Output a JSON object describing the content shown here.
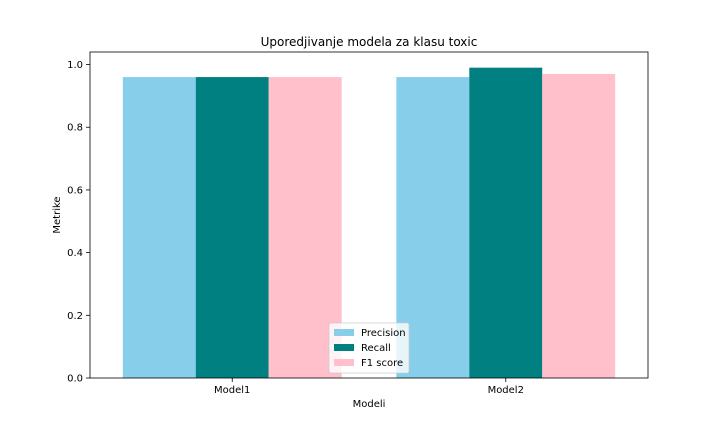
{
  "chart_data": {
    "type": "bar",
    "title": "Uporedjivanje modela za klasu toxic",
    "xlabel": "Modeli",
    "ylabel": "Metrike",
    "categories": [
      "Model1",
      "Model2"
    ],
    "series": [
      {
        "name": "Precision",
        "values": [
          0.96,
          0.96
        ],
        "color": "#87CEEB"
      },
      {
        "name": "Recall",
        "values": [
          0.96,
          0.99
        ],
        "color": "#008080"
      },
      {
        "name": "F1 score",
        "values": [
          0.96,
          0.97
        ],
        "color": "#FFC0CB"
      }
    ],
    "ylim": [
      0,
      1.04
    ],
    "yticks": [
      "0.0",
      "0.2",
      "0.4",
      "0.6",
      "0.8",
      "1.0"
    ],
    "grid": false,
    "legend_position": "bottom-center"
  }
}
